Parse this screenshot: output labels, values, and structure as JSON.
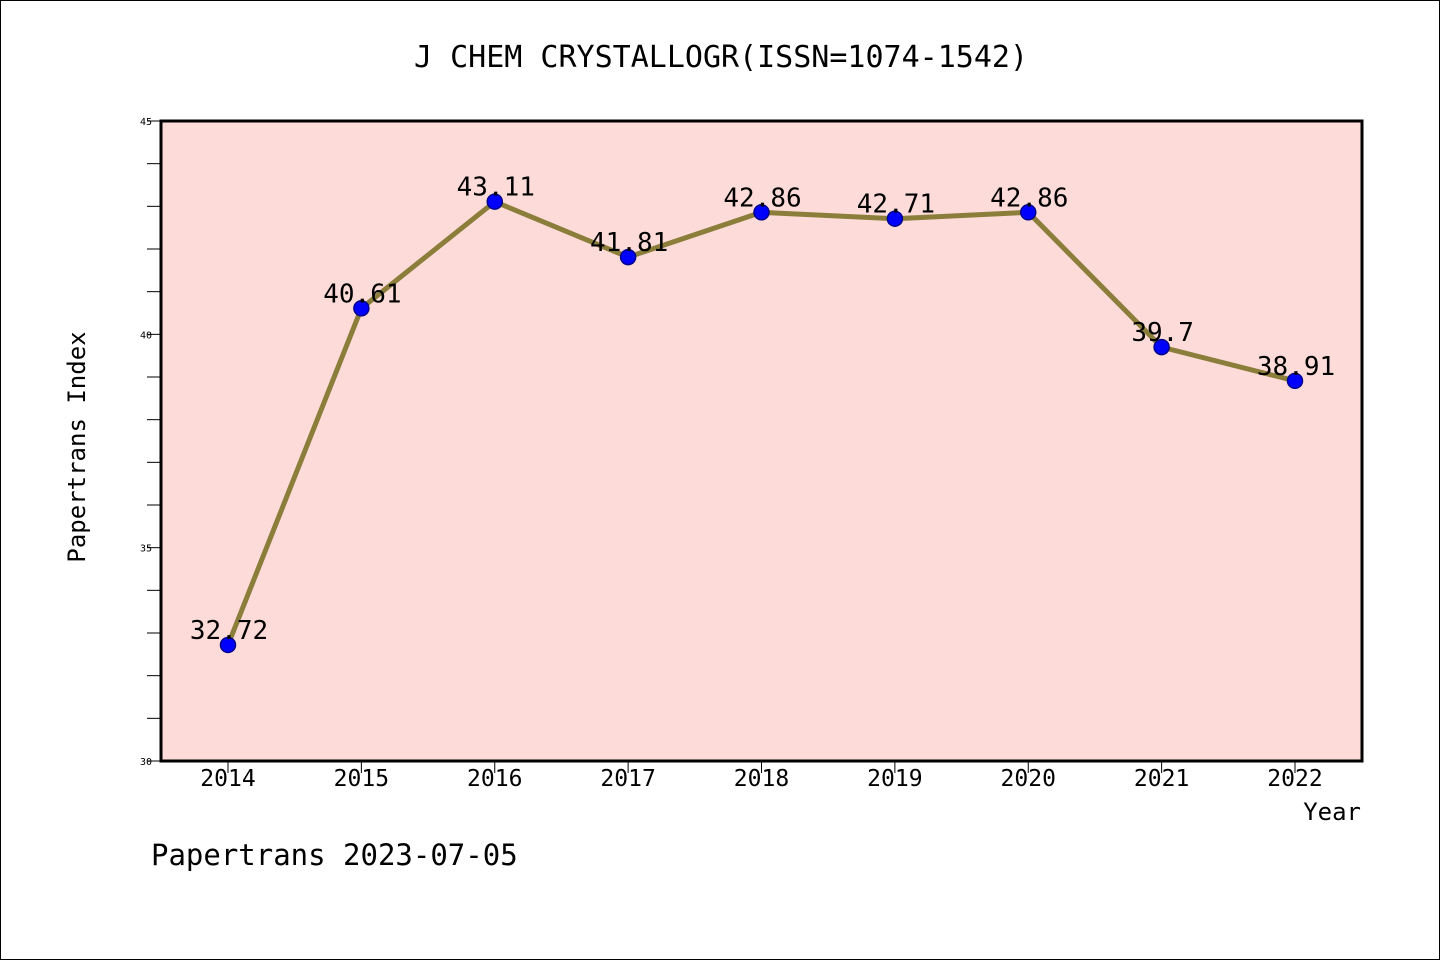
{
  "chart_data": {
    "type": "line",
    "title": "J CHEM CRYSTALLOGR(ISSN=1074-1542)",
    "xlabel": "Year",
    "ylabel": "Papertrans Index",
    "categories": [
      "2014",
      "2015",
      "2016",
      "2017",
      "2018",
      "2019",
      "2020",
      "2021",
      "2022"
    ],
    "series": [
      {
        "values": [
          32.72,
          40.61,
          43.11,
          41.81,
          42.86,
          42.71,
          42.86,
          39.7,
          38.91
        ],
        "data_labels": [
          "32.72",
          "40.61",
          "43.11",
          "41.81",
          "42.86",
          "42.71",
          "42.86",
          "39.7",
          "38.91"
        ]
      }
    ],
    "ylim": [
      30,
      45
    ],
    "yticks": [
      "30",
      "35",
      "40",
      "45"
    ],
    "y_minor_step": 1,
    "grid": false,
    "colors": {
      "plot_background": "#fddbd8",
      "line": "#8b7d3a",
      "marker": "#0000ff",
      "marker_edge": "#00008b"
    }
  },
  "footer": "Papertrans 2023-07-05"
}
